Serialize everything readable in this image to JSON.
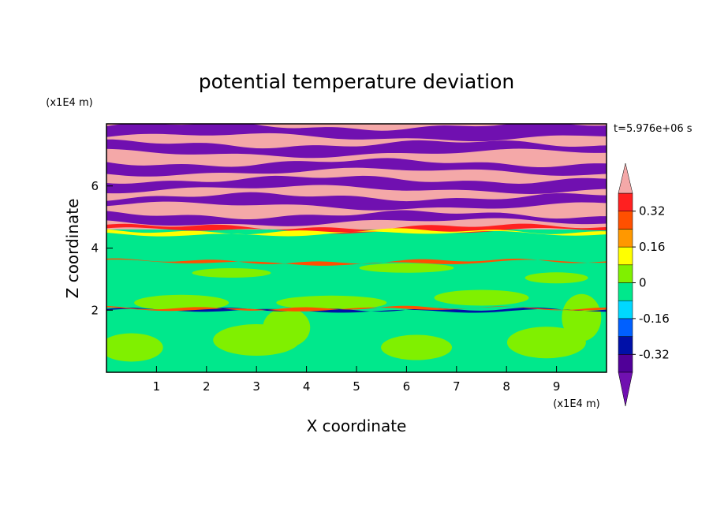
{
  "chart_data": {
    "type": "contour",
    "title": "potential temperature deviation",
    "x_label": "X coordinate",
    "y_label": "Z coordinate",
    "x_unit": "(x1E4 m)",
    "y_unit": "(x1E4 m)",
    "time_label": "t=5.976e+06 s",
    "xlim": [
      0,
      10
    ],
    "xticks": [
      1,
      2,
      3,
      4,
      5,
      6,
      7,
      8,
      9
    ],
    "ylim": [
      0,
      8
    ],
    "yticks": [
      2,
      4,
      6
    ],
    "clim": [
      -0.4,
      0.4
    ],
    "cstep": 0.08,
    "cticks": [
      -0.32,
      -0.16,
      0,
      0.16,
      0.32
    ],
    "colors": [
      "#7010b0",
      "#500098",
      "#0010a8",
      "#0060ff",
      "#00d8ff",
      "#00e88c",
      "#80f000",
      "#ffff00",
      "#ff9800",
      "#ff5000",
      "#ff2020",
      "#f4a8a8"
    ]
  }
}
